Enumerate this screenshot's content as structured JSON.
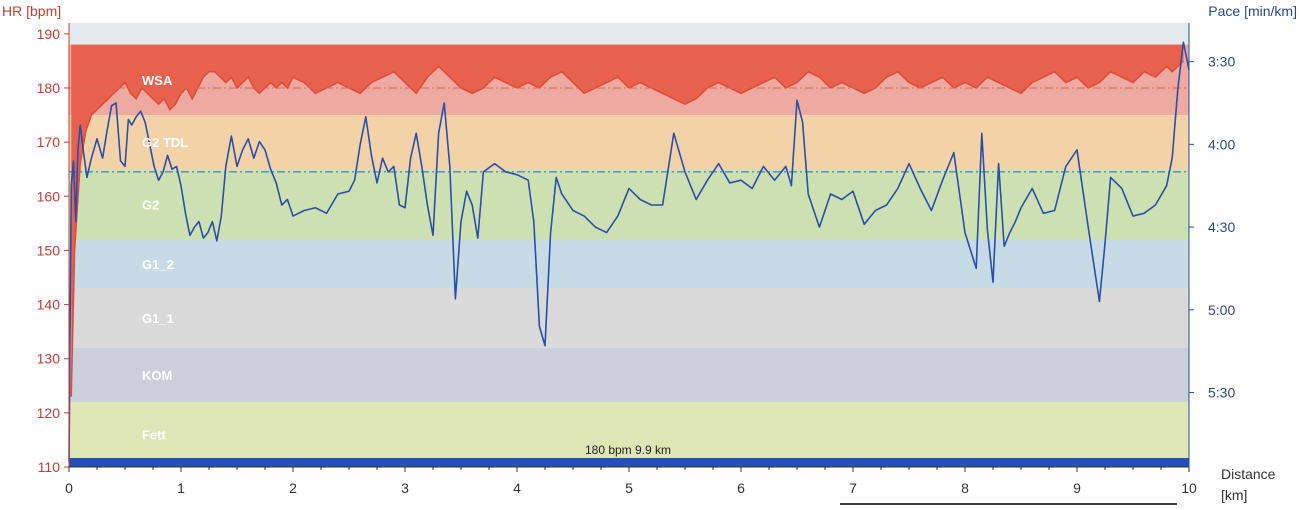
{
  "chart_data": {
    "type": "line",
    "left_axis_title": "HR [bpm]",
    "right_axis_title": "Pace [min/km]",
    "x_axis_title": "Distance",
    "x_axis_unit": "[km]",
    "annotation": "180 bpm 9.9 km",
    "xlim": [
      0,
      10
    ],
    "hr_ylim": [
      110,
      192
    ],
    "pace_ylim_seconds": [
      196,
      357
    ],
    "x_ticks": [
      "0",
      "1",
      "2",
      "3",
      "4",
      "5",
      "6",
      "7",
      "8",
      "9",
      "10"
    ],
    "hr_ticks": [
      "190",
      "180",
      "170",
      "160",
      "150",
      "140",
      "130",
      "120",
      "110"
    ],
    "pace_ticks": [
      {
        "label": "3:30",
        "sec": 210
      },
      {
        "label": "4:00",
        "sec": 240
      },
      {
        "label": "4:30",
        "sec": 270
      },
      {
        "label": "5:00",
        "sec": 300
      },
      {
        "label": "5:30",
        "sec": 330
      }
    ],
    "zones": [
      {
        "name": "WSA",
        "from": 175,
        "to": 188,
        "color": "#eeaaa0"
      },
      {
        "name": "G2 TDL",
        "from": 165,
        "to": 175,
        "color": "#f4d2a8"
      },
      {
        "name": "G2",
        "from": 152,
        "to": 165,
        "color": "#cde0b2"
      },
      {
        "name": "G1_2",
        "from": 143,
        "to": 152,
        "color": "#c6dbe5"
      },
      {
        "name": "G1_1",
        "from": 132,
        "to": 143,
        "color": "#dadada"
      },
      {
        "name": "KOM",
        "from": 122,
        "to": 132,
        "color": "#cdcfdb"
      },
      {
        "name": "Fett",
        "from": 110,
        "to": 122,
        "color": "#dde6b4"
      }
    ],
    "avg_hr": 180,
    "avg_pace_sec": 250,
    "colors": {
      "hr_line": "#e04a36",
      "hr_fill": "#e8614c",
      "pace_line": "#2a4fa8",
      "plot_top": "#e6e8ef",
      "bottom_band": "#2250b8",
      "left_axis": "#c83c32",
      "right_axis": "#2a4a8c",
      "x_axis": "#333333"
    },
    "series": [
      {
        "name": "HR",
        "x": [
          0.02,
          0.05,
          0.1,
          0.15,
          0.2,
          0.25,
          0.3,
          0.35,
          0.4,
          0.45,
          0.5,
          0.55,
          0.6,
          0.65,
          0.7,
          0.75,
          0.8,
          0.85,
          0.9,
          0.95,
          1.0,
          1.05,
          1.1,
          1.15,
          1.2,
          1.25,
          1.3,
          1.35,
          1.4,
          1.45,
          1.5,
          1.55,
          1.6,
          1.65,
          1.7,
          1.75,
          1.8,
          1.85,
          1.9,
          1.95,
          2.0,
          2.1,
          2.2,
          2.3,
          2.4,
          2.5,
          2.6,
          2.7,
          2.8,
          2.9,
          3.0,
          3.1,
          3.2,
          3.3,
          3.4,
          3.5,
          3.6,
          3.7,
          3.8,
          3.9,
          4.0,
          4.1,
          4.2,
          4.3,
          4.4,
          4.5,
          4.6,
          4.7,
          4.8,
          4.9,
          5.0,
          5.1,
          5.2,
          5.3,
          5.4,
          5.5,
          5.6,
          5.7,
          5.8,
          5.9,
          6.0,
          6.1,
          6.2,
          6.3,
          6.4,
          6.5,
          6.6,
          6.7,
          6.8,
          6.9,
          7.0,
          7.1,
          7.2,
          7.3,
          7.4,
          7.5,
          7.6,
          7.7,
          7.8,
          7.9,
          8.0,
          8.1,
          8.2,
          8.3,
          8.4,
          8.5,
          8.6,
          8.7,
          8.8,
          8.9,
          9.0,
          9.1,
          9.2,
          9.3,
          9.4,
          9.5,
          9.6,
          9.7,
          9.8,
          9.85,
          9.9,
          9.95
        ],
        "values": [
          123,
          150,
          166,
          172,
          175,
          176,
          177,
          178,
          179,
          180,
          181,
          179,
          178,
          180,
          179,
          178,
          177,
          178,
          176,
          177,
          179,
          180,
          178,
          180,
          182,
          183,
          183,
          182,
          181,
          182,
          180,
          181,
          182,
          180,
          179,
          180,
          181,
          180,
          181,
          180,
          182,
          181,
          179,
          180,
          181,
          180,
          179,
          181,
          182,
          183,
          181,
          179,
          182,
          184,
          182,
          180,
          179,
          180,
          182,
          181,
          180,
          181,
          180,
          182,
          183,
          181,
          179,
          180,
          181,
          182,
          180,
          181,
          180,
          179,
          178,
          177,
          178,
          180,
          181,
          180,
          179,
          180,
          181,
          182,
          180,
          181,
          183,
          182,
          180,
          181,
          180,
          179,
          180,
          182,
          183,
          181,
          180,
          181,
          182,
          180,
          181,
          180,
          182,
          181,
          180,
          179,
          181,
          182,
          183,
          181,
          182,
          180,
          181,
          183,
          182,
          181,
          183,
          182,
          184,
          183,
          184,
          185
        ]
      },
      {
        "name": "Pace",
        "x": [
          0.0,
          0.02,
          0.04,
          0.06,
          0.08,
          0.1,
          0.13,
          0.16,
          0.2,
          0.25,
          0.3,
          0.34,
          0.38,
          0.42,
          0.46,
          0.5,
          0.53,
          0.56,
          0.6,
          0.64,
          0.68,
          0.72,
          0.76,
          0.8,
          0.84,
          0.88,
          0.92,
          0.96,
          1.0,
          1.04,
          1.08,
          1.12,
          1.16,
          1.2,
          1.24,
          1.28,
          1.32,
          1.36,
          1.4,
          1.45,
          1.5,
          1.55,
          1.6,
          1.65,
          1.7,
          1.75,
          1.8,
          1.85,
          1.9,
          1.95,
          2.0,
          2.05,
          2.1,
          2.2,
          2.3,
          2.4,
          2.5,
          2.55,
          2.6,
          2.65,
          2.7,
          2.75,
          2.8,
          2.85,
          2.9,
          2.95,
          3.0,
          3.05,
          3.1,
          3.15,
          3.2,
          3.25,
          3.3,
          3.35,
          3.4,
          3.45,
          3.5,
          3.55,
          3.6,
          3.65,
          3.7,
          3.8,
          3.9,
          4.0,
          4.1,
          4.15,
          4.2,
          4.25,
          4.3,
          4.35,
          4.4,
          4.5,
          4.6,
          4.7,
          4.8,
          4.9,
          5.0,
          5.1,
          5.2,
          5.3,
          5.4,
          5.5,
          5.6,
          5.7,
          5.8,
          5.9,
          6.0,
          6.1,
          6.2,
          6.3,
          6.4,
          6.45,
          6.5,
          6.55,
          6.6,
          6.7,
          6.8,
          6.9,
          7.0,
          7.1,
          7.2,
          7.3,
          7.4,
          7.5,
          7.6,
          7.7,
          7.8,
          7.9,
          8.0,
          8.1,
          8.15,
          8.2,
          8.25,
          8.3,
          8.35,
          8.4,
          8.45,
          8.5,
          8.6,
          8.7,
          8.8,
          8.9,
          9.0,
          9.1,
          9.2,
          9.25,
          9.3,
          9.4,
          9.5,
          9.6,
          9.7,
          9.8,
          9.85,
          9.9,
          9.95,
          10.0
        ],
        "values_sec": [
          355,
          255,
          246,
          268,
          242,
          233,
          243,
          252,
          245,
          238,
          245,
          235,
          226,
          225,
          246,
          248,
          231,
          233,
          230,
          228,
          232,
          240,
          248,
          253,
          250,
          244,
          249,
          248,
          255,
          265,
          273,
          270,
          268,
          274,
          272,
          268,
          275,
          266,
          248,
          237,
          248,
          242,
          238,
          245,
          239,
          242,
          249,
          254,
          262,
          260,
          266,
          265,
          264,
          263,
          265,
          258,
          257,
          253,
          240,
          230,
          244,
          254,
          245,
          250,
          248,
          262,
          263,
          245,
          236,
          248,
          262,
          273,
          236,
          225,
          248,
          296,
          268,
          257,
          262,
          274,
          250,
          247,
          250,
          251,
          253,
          268,
          306,
          313,
          272,
          252,
          258,
          264,
          266,
          270,
          272,
          266,
          256,
          260,
          262,
          262,
          236,
          250,
          260,
          253,
          247,
          254,
          253,
          256,
          248,
          253,
          248,
          255,
          224,
          232,
          258,
          270,
          258,
          260,
          257,
          269,
          264,
          262,
          256,
          247,
          256,
          264,
          253,
          243,
          272,
          285,
          236,
          271,
          290,
          247,
          277,
          272,
          268,
          263,
          256,
          265,
          264,
          248,
          242,
          270,
          297,
          276,
          252,
          256,
          266,
          265,
          262,
          255,
          245,
          220,
          203,
          213
        ]
      }
    ]
  }
}
